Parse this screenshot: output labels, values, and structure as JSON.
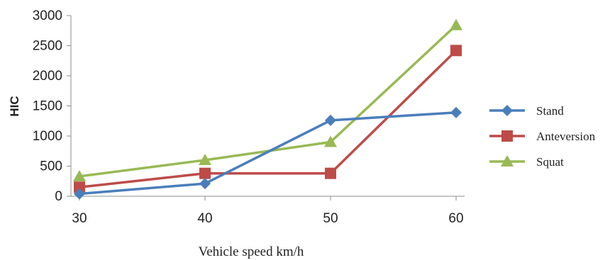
{
  "chart_data": {
    "type": "line",
    "x": [
      30,
      40,
      50,
      60
    ],
    "series": [
      {
        "name": "Stand",
        "values": [
          40,
          210,
          1260,
          1390
        ],
        "color": "#4a7ebb",
        "marker": "diamond"
      },
      {
        "name": "Anteversion",
        "values": [
          150,
          380,
          380,
          2420
        ],
        "color": "#be4b48",
        "marker": "square"
      },
      {
        "name": "Squat",
        "values": [
          330,
          600,
          900,
          2840
        ],
        "color": "#98b954",
        "marker": "triangle"
      }
    ],
    "xlabel": "Vehicle speed km/h",
    "ylabel": "HIC",
    "ylim": [
      0,
      3000
    ],
    "yticks": [
      0,
      500,
      1000,
      1500,
      2000,
      2500,
      3000
    ],
    "xticks": [
      30,
      40,
      50,
      60
    ],
    "grid": false,
    "legend_position": "right"
  }
}
